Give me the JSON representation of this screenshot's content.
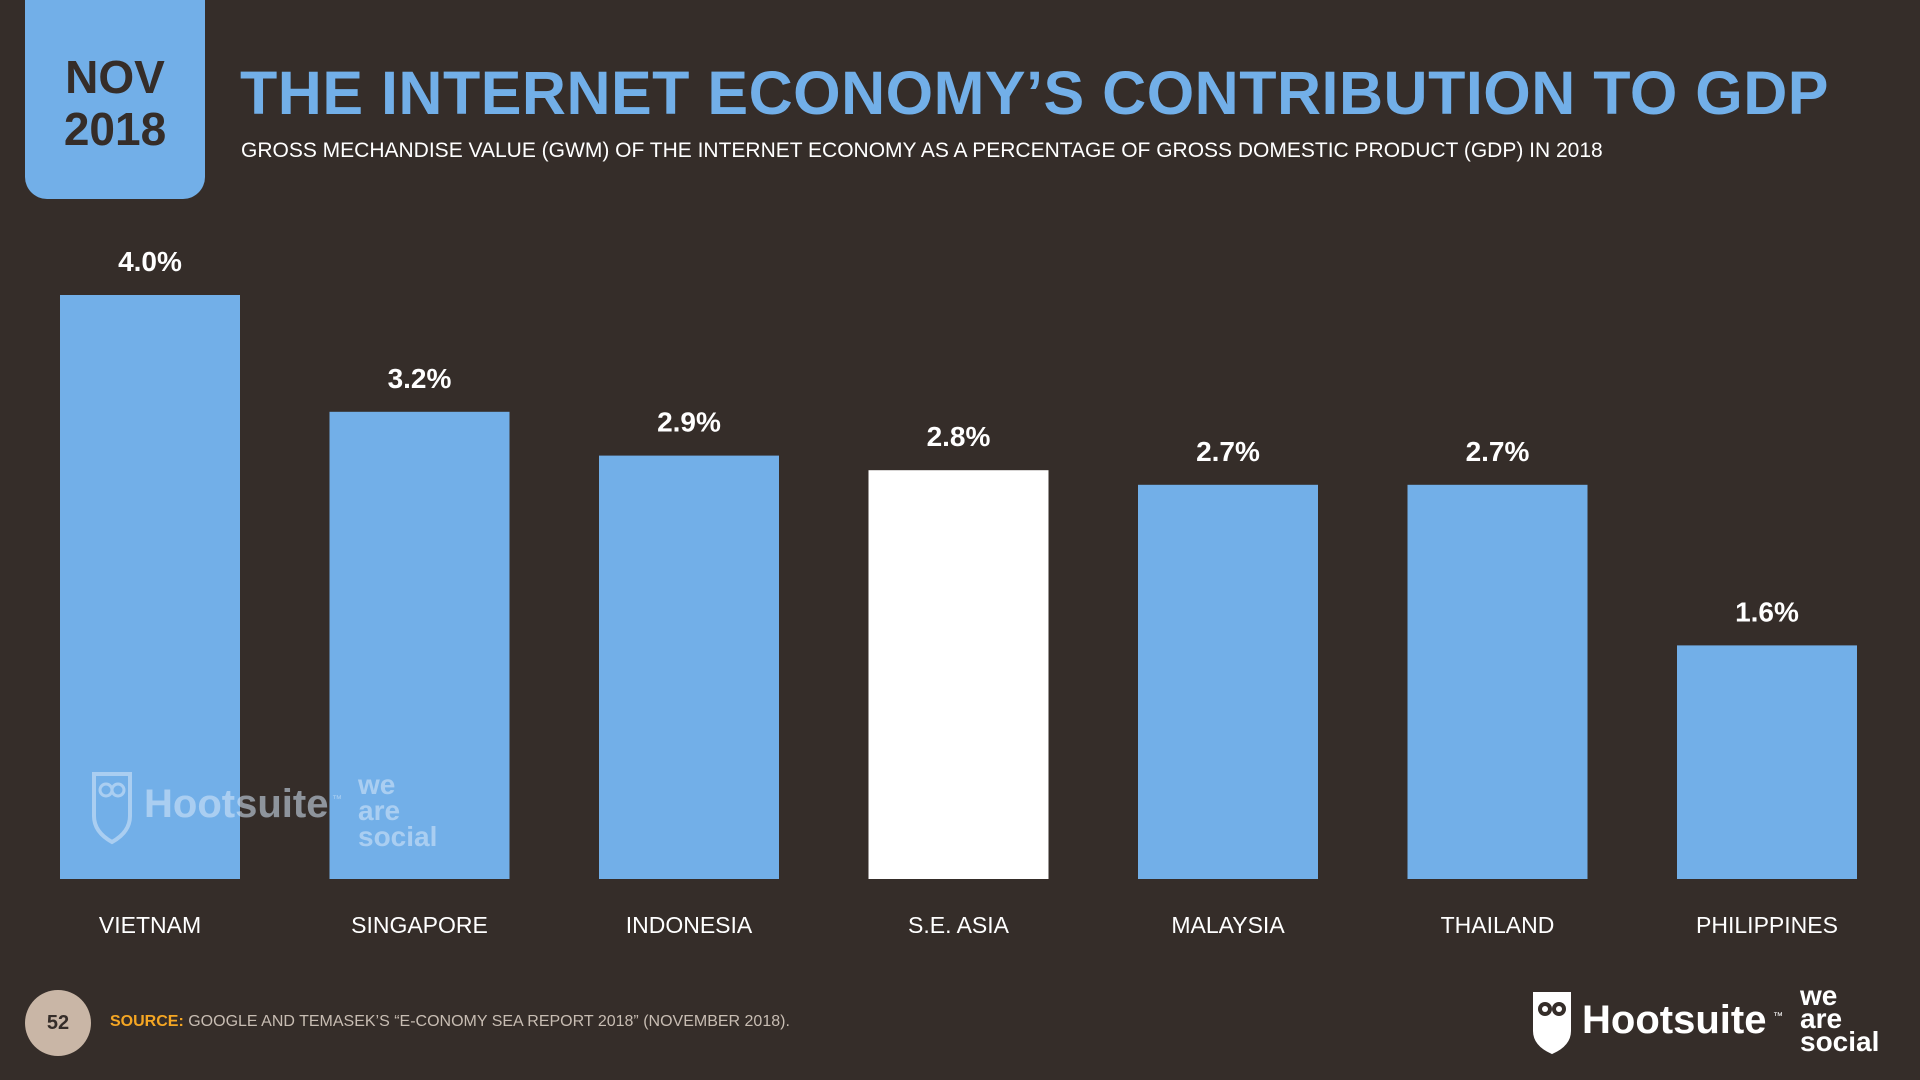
{
  "header": {
    "month": "NOV",
    "year": "2018",
    "title": "THE INTERNET ECONOMY’S CONTRIBUTION TO GDP",
    "subtitle": "GROSS MECHANDISE VALUE (GWM) OF THE INTERNET ECONOMY AS A PERCENTAGE OF GROSS DOMESTIC PRODUCT (GDP) IN 2018"
  },
  "chart_data": {
    "type": "bar",
    "title": "THE INTERNET ECONOMY’S CONTRIBUTION TO GDP",
    "categories": [
      "VIETNAM",
      "SINGAPORE",
      "INDONESIA",
      "S.E. ASIA",
      "MALAYSIA",
      "THAILAND",
      "PHILIPPINES"
    ],
    "values": [
      4.0,
      3.2,
      2.9,
      2.8,
      2.7,
      2.7,
      1.6
    ],
    "labels": [
      "4.0%",
      "3.2%",
      "2.9%",
      "2.8%",
      "2.7%",
      "2.7%",
      "1.6%"
    ],
    "highlight": "S.E. ASIA",
    "unit": "%",
    "ylim": [
      0,
      4.0
    ],
    "xlabel": "",
    "ylabel": "",
    "grid": false,
    "colors": {
      "bar": "#72afe8",
      "highlight": "#ffffff",
      "label": "#ffffff"
    }
  },
  "watermark": {
    "brand": "Hootsuite",
    "tm": "™",
    "line1": "we",
    "line2": "are",
    "line3": "social"
  },
  "footer": {
    "page_number": "52",
    "source_label": "SOURCE:",
    "source_text": "GOOGLE AND TEMASEK’S “E-CONOMY SEA REPORT 2018” (NOVEMBER 2018).",
    "brand": "Hootsuite",
    "tm": "™",
    "partner_line1": "we",
    "partner_line2": "are",
    "partner_line3": "social"
  },
  "colors": {
    "background": "#352d29",
    "accent": "#72afe8",
    "source_label": "#f5a623"
  }
}
